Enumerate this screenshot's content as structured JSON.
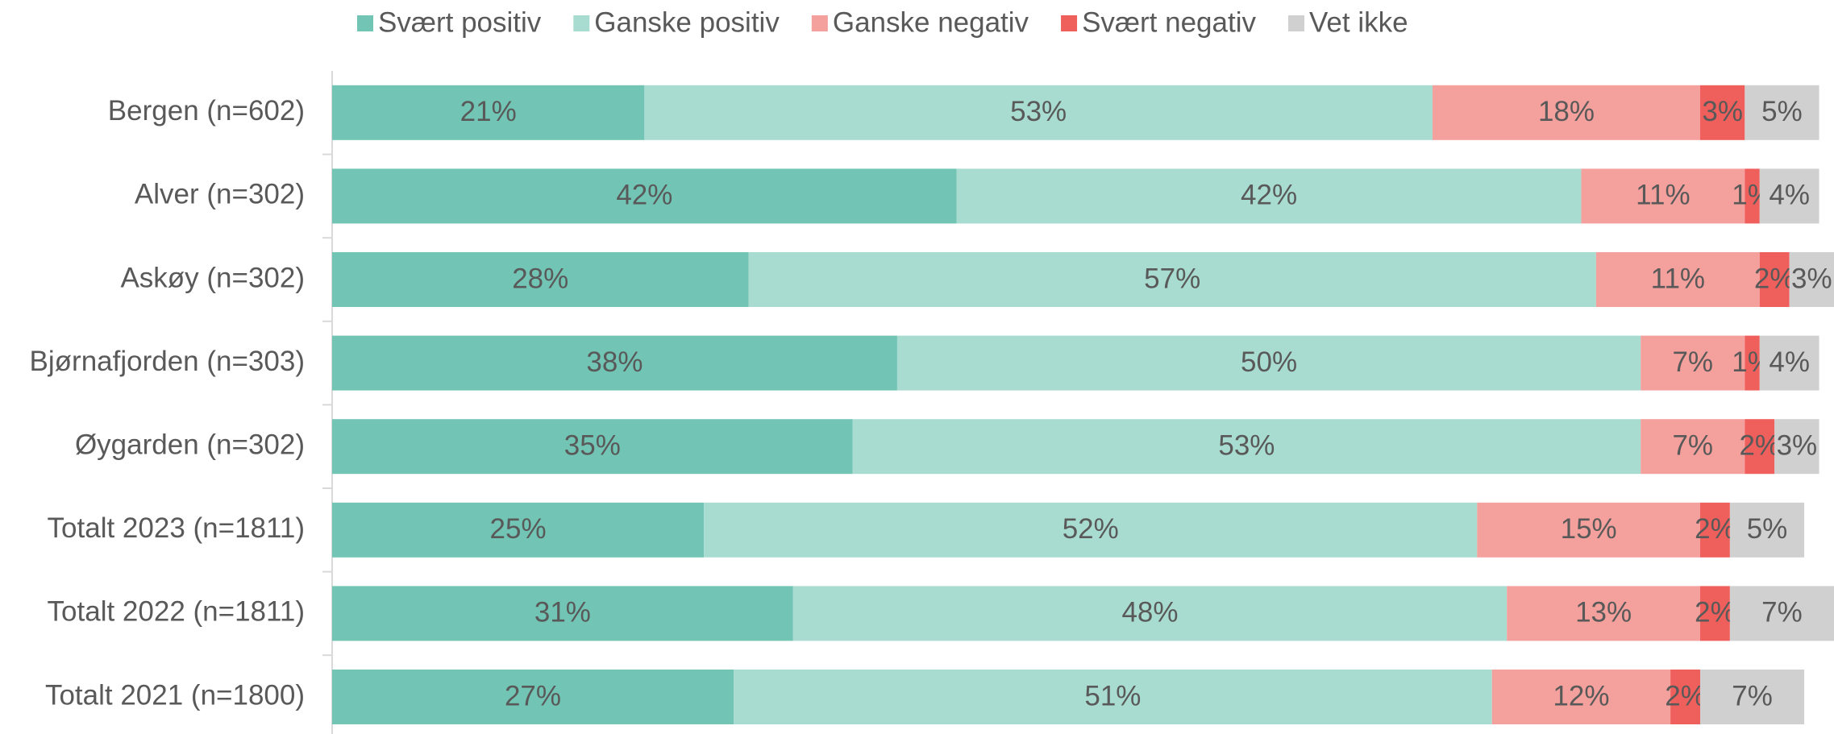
{
  "chart_data": {
    "type": "bar",
    "orientation": "horizontal",
    "stacked": true,
    "categories": [
      "Bergen (n=602)",
      "Alver (n=302)",
      "Askøy (n=302)",
      "Bjørnafjorden (n=303)",
      "Øygarden (n=302)",
      "Totalt 2023 (n=1811)",
      "Totalt 2022 (n=1811)",
      "Totalt 2021 (n=1800)"
    ],
    "xlim": [
      0,
      101
    ],
    "legend": "top",
    "series": [
      {
        "name": "Svært positiv",
        "color": "#72c4b4",
        "values": [
          21,
          42,
          28,
          38,
          35,
          25,
          31,
          27
        ],
        "value_labels": [
          "21%",
          "42%",
          "28%",
          "38%",
          "35%",
          "25%",
          "31%",
          "27%"
        ]
      },
      {
        "name": "Ganske positiv",
        "color": "#a9dcd0",
        "values": [
          53,
          42,
          57,
          50,
          53,
          52,
          48,
          51
        ],
        "value_labels": [
          "53%",
          "42%",
          "57%",
          "50%",
          "53%",
          "52%",
          "48%",
          "51%"
        ]
      },
      {
        "name": "Ganske negativ",
        "color": "#f4a09c",
        "values": [
          18,
          11,
          11,
          7,
          7,
          15,
          13,
          12
        ],
        "value_labels": [
          "18%",
          "11%",
          "11%",
          "7%",
          "7%",
          "15%",
          "13%",
          "12%"
        ]
      },
      {
        "name": "Svært negativ",
        "color": "#ef5f5c",
        "values": [
          3,
          1,
          2,
          1,
          2,
          2,
          2,
          2
        ],
        "value_labels": [
          "3%",
          "1%",
          "2%",
          "1%",
          "2%",
          "2%",
          "2%",
          "2%"
        ]
      },
      {
        "name": "Vet ikke",
        "color": "#d0d0d0",
        "values": [
          5,
          4,
          3,
          4,
          3,
          5,
          7,
          7
        ],
        "value_labels": [
          "5%",
          "4%",
          "3%",
          "4%",
          "3%",
          "5%",
          "7%",
          "7%"
        ]
      }
    ]
  }
}
